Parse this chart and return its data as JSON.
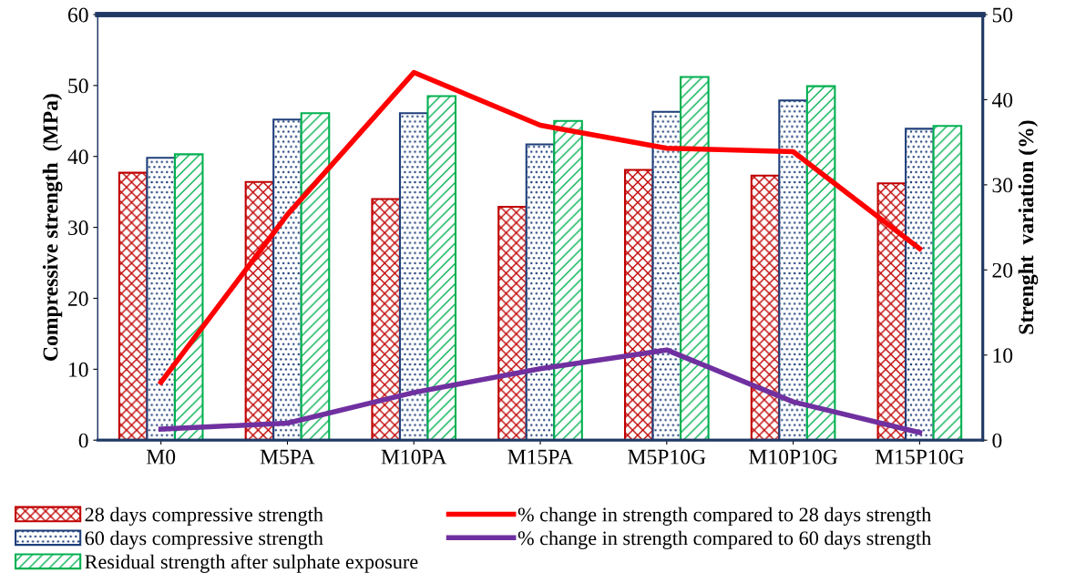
{
  "chart_data": {
    "type": "bar",
    "ylabel": "Compressive strength  (MPa)",
    "y2label": "Strenght  variation (%)",
    "categories": [
      "M0",
      "M5PA",
      "M10PA",
      "M15PA",
      "M5P10G",
      "M10P10G",
      "M15P10G"
    ],
    "series": [
      {
        "name": "28 days compressive strength",
        "color": "#c00000",
        "values": [
          37.7,
          36.4,
          34.0,
          32.9,
          38.1,
          37.3,
          36.2
        ]
      },
      {
        "name": "60 days compressive strength",
        "color": "#1f3f7a",
        "values": [
          39.8,
          45.2,
          46.1,
          41.7,
          46.3,
          47.9,
          43.9
        ]
      },
      {
        "name": "Residual strength after sulphate exposure",
        "color": "#00b050",
        "values": [
          40.3,
          46.1,
          48.5,
          45.0,
          51.2,
          49.9,
          44.3
        ]
      },
      {
        "name": "% change in strength compared to 28 days strength",
        "type": "line",
        "axis": "y2",
        "color": "#ff0000",
        "values": [
          6.8,
          26.5,
          43.2,
          37.0,
          34.3,
          33.9,
          22.5
        ]
      },
      {
        "name": "% change in strength compared to 60 days strength",
        "type": "line",
        "axis": "y2",
        "color": "#7030a0",
        "values": [
          1.3,
          2.0,
          5.6,
          8.4,
          10.6,
          4.5,
          0.9
        ]
      }
    ],
    "ylim": [
      0,
      60
    ],
    "yticks": [
      0,
      10,
      20,
      30,
      40,
      50,
      60
    ],
    "y2lim": [
      0,
      50
    ],
    "y2ticks": [
      0,
      10,
      20,
      30,
      40,
      50
    ],
    "grid": false,
    "legend": "bottom",
    "marker": "none",
    "line_style": "solid"
  }
}
